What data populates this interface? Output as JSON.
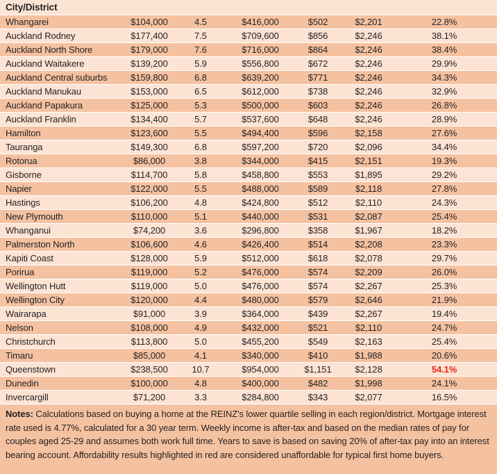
{
  "chart_data": {
    "type": "table",
    "header": "City/District",
    "rows": [
      {
        "city": "Whangarei",
        "values": [
          "$104,000",
          "4.5",
          "$416,000",
          "$502",
          "$2,201",
          "22.8%"
        ],
        "highlight": false
      },
      {
        "city": "Auckland Rodney",
        "values": [
          "$177,400",
          "7.5",
          "$709,600",
          "$856",
          "$2,246",
          "38.1%"
        ],
        "highlight": false
      },
      {
        "city": "Auckland North Shore",
        "values": [
          "$179,000",
          "7.6",
          "$716,000",
          "$864",
          "$2,246",
          "38.4%"
        ],
        "highlight": false
      },
      {
        "city": "Auckland Waitakere",
        "values": [
          "$139,200",
          "5.9",
          "$556,800",
          "$672",
          "$2,246",
          "29.9%"
        ],
        "highlight": false
      },
      {
        "city": "Auckland Central suburbs",
        "values": [
          "$159,800",
          "6.8",
          "$639,200",
          "$771",
          "$2,246",
          "34.3%"
        ],
        "highlight": false
      },
      {
        "city": "Auckland Manukau",
        "values": [
          "$153,000",
          "6.5",
          "$612,000",
          "$738",
          "$2,246",
          "32.9%"
        ],
        "highlight": false
      },
      {
        "city": "Auckland Papakura",
        "values": [
          "$125,000",
          "5.3",
          "$500,000",
          "$603",
          "$2,246",
          "26.8%"
        ],
        "highlight": false
      },
      {
        "city": "Auckland Franklin",
        "values": [
          "$134,400",
          "5.7",
          "$537,600",
          "$648",
          "$2,246",
          "28.9%"
        ],
        "highlight": false
      },
      {
        "city": "Hamilton",
        "values": [
          "$123,600",
          "5.5",
          "$494,400",
          "$596",
          "$2,158",
          "27.6%"
        ],
        "highlight": false
      },
      {
        "city": "Tauranga",
        "values": [
          "$149,300",
          "6.8",
          "$597,200",
          "$720",
          "$2,096",
          "34.4%"
        ],
        "highlight": false
      },
      {
        "city": "Rotorua",
        "values": [
          "$86,000",
          "3.8",
          "$344,000",
          "$415",
          "$2,151",
          "19.3%"
        ],
        "highlight": false
      },
      {
        "city": "Gisborne",
        "values": [
          "$114,700",
          "5.8",
          "$458,800",
          "$553",
          "$1,895",
          "29.2%"
        ],
        "highlight": false
      },
      {
        "city": "Napier",
        "values": [
          "$122,000",
          "5.5",
          "$488,000",
          "$589",
          "$2,118",
          "27.8%"
        ],
        "highlight": false
      },
      {
        "city": "Hastings",
        "values": [
          "$106,200",
          "4.8",
          "$424,800",
          "$512",
          "$2,110",
          "24.3%"
        ],
        "highlight": false
      },
      {
        "city": "New Plymouth",
        "values": [
          "$110,000",
          "5.1",
          "$440,000",
          "$531",
          "$2,087",
          "25.4%"
        ],
        "highlight": false
      },
      {
        "city": "Whanganui",
        "values": [
          "$74,200",
          "3.6",
          "$296,800",
          "$358",
          "$1,967",
          "18.2%"
        ],
        "highlight": false
      },
      {
        "city": "Palmerston North",
        "values": [
          "$106,600",
          "4.6",
          "$426,400",
          "$514",
          "$2,208",
          "23.3%"
        ],
        "highlight": false
      },
      {
        "city": "Kapiti Coast",
        "values": [
          "$128,000",
          "5.9",
          "$512,000",
          "$618",
          "$2,078",
          "29.7%"
        ],
        "highlight": false
      },
      {
        "city": "Porirua",
        "values": [
          "$119,000",
          "5.2",
          "$476,000",
          "$574",
          "$2,209",
          "26.0%"
        ],
        "highlight": false
      },
      {
        "city": "Wellington Hutt",
        "values": [
          "$119,000",
          "5.0",
          "$476,000",
          "$574",
          "$2,267",
          "25.3%"
        ],
        "highlight": false
      },
      {
        "city": "Wellington City",
        "values": [
          "$120,000",
          "4.4",
          "$480,000",
          "$579",
          "$2,646",
          "21.9%"
        ],
        "highlight": false
      },
      {
        "city": "Wairarapa",
        "values": [
          "$91,000",
          "3.9",
          "$364,000",
          "$439",
          "$2,267",
          "19.4%"
        ],
        "highlight": false
      },
      {
        "city": "Nelson",
        "values": [
          "$108,000",
          "4.9",
          "$432,000",
          "$521",
          "$2,110",
          "24.7%"
        ],
        "highlight": false
      },
      {
        "city": "Christchurch",
        "values": [
          "$113,800",
          "5.0",
          "$455,200",
          "$549",
          "$2,163",
          "25.4%"
        ],
        "highlight": false
      },
      {
        "city": "Timaru",
        "values": [
          "$85,000",
          "4.1",
          "$340,000",
          "$410",
          "$1,988",
          "20.6%"
        ],
        "highlight": false
      },
      {
        "city": "Queenstown",
        "values": [
          "$238,500",
          "10.7",
          "$954,000",
          "$1,151",
          "$2,128",
          "54.1%"
        ],
        "highlight": true
      },
      {
        "city": "Dunedin",
        "values": [
          "$100,000",
          "4.8",
          "$400,000",
          "$482",
          "$1,998",
          "24.1%"
        ],
        "highlight": false
      },
      {
        "city": "Invercargill",
        "values": [
          "$71,200",
          "3.3",
          "$284,800",
          "$343",
          "$2,077",
          "16.5%"
        ],
        "highlight": false
      }
    ],
    "notes_label": "Notes:",
    "notes_text": "Calculations based on buying a home at the REINZ's lower quartile selling in each region/district. Mortgage interest rate used is 4.77%, calculated for a 30 year term. Weekly income is after-tax and based on the median rates of pay for couples aged 25-29 and assumes both work full time. Years to save is based on saving 20% of after-tax pay into an interest bearing account. Affordability results highlighted in red are considered unaffordable for typical first home buyers.",
    "colors": {
      "row_dark": "#f5c2a1",
      "row_light": "#fce3d4",
      "highlight_red": "#e8251c",
      "separator": "#ffffff",
      "text": "#231f20"
    }
  }
}
